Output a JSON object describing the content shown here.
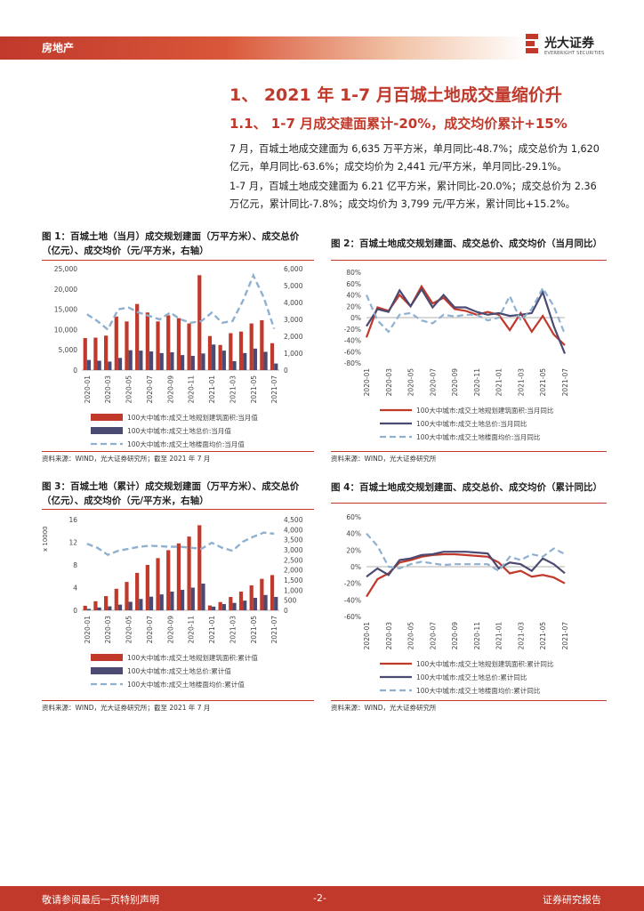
{
  "header": {
    "section": "房地产",
    "brand_name": "光大证券",
    "brand_sub": "EVERBRIGHT SECURITIES"
  },
  "headings": {
    "h1": "1、 2021 年 1-7 月百城土地成交量缩价升",
    "h2": "1.1、  1-7 月成交建面累计-20%，成交均价累计+15%"
  },
  "paragraphs": [
    "7 月，百城土地成交建面为 6,635 万平方米，单月同比-48.7%；成交总价为 1,620 亿元，单月同比-63.6%；成交均价为 2,441 元/平方米，单月同比-29.1%。",
    "1-7 月，百城土地成交建面为 6.21 亿平方米，累计同比-20.0%；成交总价为 2.36 万亿元，累计同比-7.8%；成交均价为 3,799 元/平方米，累计同比+15.2%。"
  ],
  "figures": {
    "f1": {
      "title": "图 1：百城土地（当月）成交规划建面（万平方米）、成交总价（亿元）、成交均价（元/平方米，右轴）",
      "source": "资料来源：WIND，光大证券研究所；截至 2021 年 7 月"
    },
    "f2": {
      "title": "图 2：百城土地成交规划建面、成交总价、成交均价（当月同比）",
      "source": "资料来源：WIND，光大证券研究所"
    },
    "f3": {
      "title": "图 3：百城土地（累计）成交规划建面（万平方米）、成交总价（亿元）、成交均价（元/平方米，右轴）",
      "source": "资料来源：WIND，光大证券研究所；截至 2021 年 7 月"
    },
    "f4": {
      "title": "图 4：百城土地成交规划建面、成交总价、成交均价（累计同比）",
      "source": "资料来源：WIND，光大证券研究所"
    }
  },
  "chart_data": [
    {
      "type": "bar",
      "id": "f1",
      "categories": [
        "2020-01",
        "2020-02",
        "2020-03",
        "2020-04",
        "2020-05",
        "2020-06",
        "2020-07",
        "2020-08",
        "2020-09",
        "2020-10",
        "2020-11",
        "2020-12",
        "2021-01",
        "2021-02",
        "2021-03",
        "2021-04",
        "2021-05",
        "2021-06",
        "2021-07"
      ],
      "tick_labels": [
        "2020-01",
        "2020-03",
        "2020-05",
        "2020-07",
        "2020-09",
        "2020-11",
        "2021-01",
        "2021-03",
        "2021-05",
        "2021-07"
      ],
      "ylim": [
        0,
        25000
      ],
      "yticks": [
        "0",
        "5,000",
        "10,000",
        "15,000",
        "20,000",
        "25,000"
      ],
      "y2lim": [
        0,
        6000
      ],
      "y2ticks": [
        "0",
        "1,000",
        "2,000",
        "3,000",
        "4,000",
        "5,000",
        "6,000"
      ],
      "series": [
        {
          "name": "100大中城市:成交土地规划建筑面积:当月值",
          "kind": "bar",
          "color": "#c0392b",
          "values": [
            7900,
            8000,
            8500,
            13200,
            12000,
            16300,
            14200,
            12000,
            13500,
            12800,
            11500,
            23400,
            8400,
            6200,
            9100,
            9500,
            11500,
            12300,
            6635
          ]
        },
        {
          "name": "100大中城市:成交土地总价:当月值",
          "kind": "bar",
          "color": "#4a4a72",
          "values": [
            2500,
            2300,
            2100,
            3000,
            4900,
            4800,
            4600,
            4200,
            4400,
            3700,
            3500,
            4100,
            6300,
            4800,
            2200,
            4200,
            5300,
            4500,
            1620
          ]
        },
        {
          "name": "100大中城市:成交土地楼面均价:当月值",
          "kind": "line",
          "axis": "right",
          "color": "#8fb0cf",
          "values": [
            3300,
            2900,
            2400,
            3600,
            3700,
            3400,
            3200,
            3000,
            3400,
            3000,
            2800,
            2900,
            3400,
            2800,
            2900,
            4100,
            5600,
            4300,
            2441
          ]
        }
      ]
    },
    {
      "type": "line",
      "id": "f2",
      "categories": [
        "2020-01",
        "2020-02",
        "2020-03",
        "2020-04",
        "2020-05",
        "2020-06",
        "2020-07",
        "2020-08",
        "2020-09",
        "2020-10",
        "2020-11",
        "2020-12",
        "2021-01",
        "2021-02",
        "2021-03",
        "2021-04",
        "2021-05",
        "2021-06",
        "2021-07"
      ],
      "tick_labels": [
        "2020-01",
        "2020-03",
        "2020-05",
        "2020-07",
        "2020-09",
        "2020-11",
        "2021-01",
        "2021-03",
        "2021-05",
        "2021-07"
      ],
      "ylim": [
        -80,
        80
      ],
      "yticks": [
        "-80%",
        "-60%",
        "-40%",
        "-20%",
        "0%",
        "20%",
        "40%",
        "60%",
        "80%"
      ],
      "series": [
        {
          "name": "100大中城市:成交土地规划建筑面积:当月同比",
          "color": "#c0392b",
          "dash": "",
          "values": [
            -35,
            18,
            12,
            40,
            20,
            55,
            25,
            35,
            15,
            12,
            5,
            10,
            5,
            -22,
            8,
            -25,
            3,
            -30,
            -48.7
          ]
        },
        {
          "name": "100大中城市:成交土地总价:当月同比",
          "color": "#4a4a72",
          "dash": "",
          "values": [
            -15,
            15,
            10,
            48,
            20,
            50,
            18,
            40,
            18,
            18,
            10,
            5,
            8,
            3,
            5,
            8,
            45,
            -15,
            -63.6
          ]
        },
        {
          "name": "100大中城市:成交土地楼面均价:当月同比",
          "color": "#8fb0cf",
          "dash": "7,4",
          "values": [
            40,
            -5,
            -25,
            5,
            8,
            -5,
            -10,
            5,
            2,
            5,
            5,
            -5,
            0,
            38,
            -5,
            15,
            52,
            20,
            -29.1
          ]
        }
      ]
    },
    {
      "type": "bar",
      "id": "f3",
      "y_unit": "x 10000",
      "categories": [
        "2020-01",
        "2020-02",
        "2020-03",
        "2020-04",
        "2020-05",
        "2020-06",
        "2020-07",
        "2020-08",
        "2020-09",
        "2020-10",
        "2020-11",
        "2020-12",
        "2021-01",
        "2021-02",
        "2021-03",
        "2021-04",
        "2021-05",
        "2021-06",
        "2021-07"
      ],
      "tick_labels": [
        "2020-01",
        "2020-03",
        "2020-05",
        "2020-07",
        "2020-09",
        "2020-11",
        "2021-01",
        "2021-03",
        "2021-05",
        "2021-07"
      ],
      "ylim": [
        0,
        16
      ],
      "yticks": [
        "0",
        "4",
        "8",
        "12",
        "16"
      ],
      "y2lim": [
        0,
        4500
      ],
      "y2ticks": [
        "0",
        "500",
        "1,000",
        "1,500",
        "2,000",
        "2,500",
        "3,000",
        "3,500",
        "4,000",
        "4,500"
      ],
      "series": [
        {
          "name": "100大中城市:成交土地规划建筑面积:累计值",
          "kind": "bar",
          "color": "#c0392b",
          "values": [
            0.8,
            1.6,
            2.5,
            3.8,
            5.0,
            6.6,
            8.0,
            9.2,
            10.6,
            11.8,
            13.0,
            15.0,
            0.85,
            1.45,
            2.35,
            3.3,
            4.4,
            5.55,
            6.21
          ]
        },
        {
          "name": "100大中城市:成交土地总价:累计值",
          "kind": "bar",
          "color": "#4a4a72",
          "values": [
            0.25,
            0.5,
            0.7,
            1.0,
            1.5,
            2.0,
            2.4,
            2.8,
            3.3,
            3.6,
            4.0,
            4.7,
            0.65,
            1.1,
            1.3,
            1.7,
            2.2,
            2.7,
            2.36
          ]
        },
        {
          "name": "100大中城市:成交土地楼面均价:累计值",
          "kind": "line",
          "axis": "right",
          "color": "#8fb0cf",
          "values": [
            3300,
            3100,
            2750,
            2950,
            3050,
            3150,
            3200,
            3180,
            3150,
            3150,
            3100,
            3050,
            3350,
            3100,
            2950,
            3400,
            3650,
            3850,
            3799
          ]
        }
      ]
    },
    {
      "type": "line",
      "id": "f4",
      "categories": [
        "2020-01",
        "2020-02",
        "2020-03",
        "2020-04",
        "2020-05",
        "2020-06",
        "2020-07",
        "2020-08",
        "2020-09",
        "2020-10",
        "2020-11",
        "2020-12",
        "2021-01",
        "2021-02",
        "2021-03",
        "2021-04",
        "2021-05",
        "2021-06",
        "2021-07"
      ],
      "tick_labels": [
        "2020-01",
        "2020-03",
        "2020-05",
        "2020-07",
        "2020-09",
        "2020-11",
        "2021-01",
        "2021-03",
        "2021-05",
        "2021-07"
      ],
      "ylim": [
        -60,
        60
      ],
      "yticks": [
        "-60%",
        "-40%",
        "-20%",
        "0%",
        "20%",
        "40%",
        "60%"
      ],
      "series": [
        {
          "name": "100大中城市:成交土地规划建筑面积:累计同比",
          "color": "#c0392b",
          "dash": "",
          "values": [
            -36,
            -15,
            -8,
            5,
            8,
            12,
            14,
            15,
            15,
            14,
            13,
            12,
            5,
            -8,
            -5,
            -12,
            -10,
            -13,
            -20
          ]
        },
        {
          "name": "100大中城市:成交土地总价:累计同比",
          "color": "#4a4a72",
          "dash": "",
          "values": [
            -12,
            -2,
            -10,
            8,
            10,
            14,
            15,
            18,
            18,
            18,
            17,
            16,
            -2,
            5,
            3,
            -5,
            10,
            3,
            -7.8
          ]
        },
        {
          "name": "100大中城市:成交土地楼面均价:累计同比",
          "color": "#8fb0cf",
          "dash": "7,4",
          "values": [
            40,
            25,
            0,
            -2,
            3,
            6,
            4,
            2,
            3,
            3,
            3,
            3,
            -5,
            12,
            8,
            15,
            12,
            22,
            15.2
          ]
        }
      ]
    }
  ],
  "footer": {
    "left": "敬请参阅最后一页特别声明",
    "center": "-2-",
    "right": "证券研究报告"
  }
}
